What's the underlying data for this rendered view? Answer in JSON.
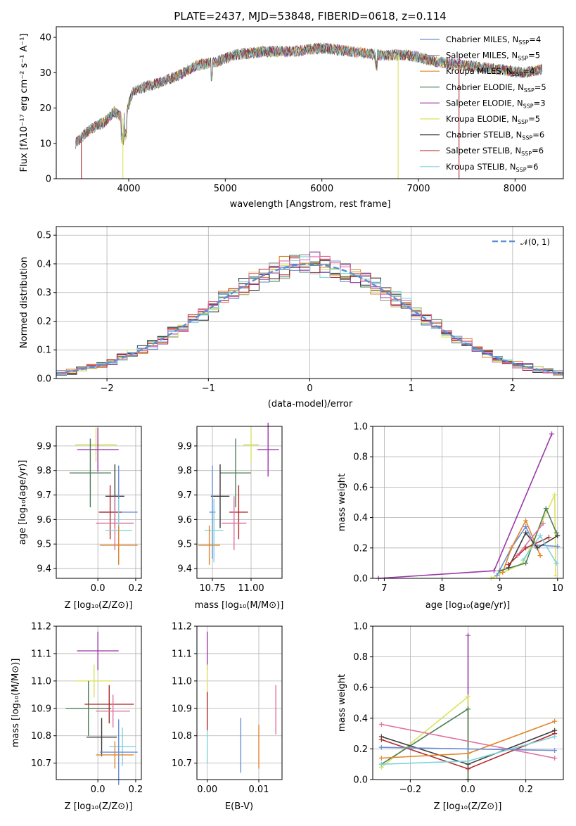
{
  "chart_data": [
    {
      "id": "spectrum",
      "type": "line",
      "title": "PLATE=2437, MJD=53848, FIBERID=0618, z=0.114",
      "xlabel": "wavelength [Angstrom, rest frame]",
      "ylabel": "Flux [fλ10⁻¹⁷ erg cm⁻² s⁻¹ A⁻¹]",
      "xlim": [
        3250,
        8500
      ],
      "ylim": [
        0,
        43
      ],
      "xticks": [
        4000,
        5000,
        6000,
        7000,
        8000
      ],
      "yticks": [
        0,
        10,
        20,
        30,
        40
      ],
      "legend_position": "top-right",
      "legend": [
        {
          "label": "Chabrier MILES, N",
          "sub": "SSP",
          "eq": "=4",
          "color": "#6a8fd6"
        },
        {
          "label": "Salpeter MILES, N",
          "sub": "SSP",
          "eq": "=5",
          "color": "#9a9a9a"
        },
        {
          "label": "Kroupa MILES, N",
          "sub": "SSP",
          "eq": "=4",
          "color": "#e2852b"
        },
        {
          "label": "Chabrier ELODIE, N",
          "sub": "SSP",
          "eq": "=5",
          "color": "#4f7f5b"
        },
        {
          "label": "Salpeter ELODIE, N",
          "sub": "SSP",
          "eq": "=3",
          "color": "#9b3aa8"
        },
        {
          "label": "Kroupa ELODIE, N",
          "sub": "SSP",
          "eq": "=5",
          "color": "#d9e35a"
        },
        {
          "label": "Chabrier STELIB, N",
          "sub": "SSP",
          "eq": "=6",
          "color": "#3c3c3c"
        },
        {
          "label": "Salpeter STELIB, N",
          "sub": "SSP",
          "eq": "=6",
          "color": "#b02a2a"
        },
        {
          "label": "Kroupa STELIB, N",
          "sub": "SSP",
          "eq": "=6",
          "color": "#7fd3db"
        }
      ],
      "continuum": [
        [
          3450,
          10
        ],
        [
          3600,
          14
        ],
        [
          3750,
          16
        ],
        [
          3850,
          19
        ],
        [
          3950,
          17
        ],
        [
          4050,
          25
        ],
        [
          4300,
          27
        ],
        [
          4500,
          29
        ],
        [
          4700,
          32
        ],
        [
          4900,
          33
        ],
        [
          5100,
          35
        ],
        [
          5400,
          36
        ],
        [
          5700,
          36
        ],
        [
          6000,
          37
        ],
        [
          6300,
          36
        ],
        [
          6600,
          35
        ],
        [
          6900,
          35
        ],
        [
          7200,
          33
        ],
        [
          7500,
          32
        ],
        [
          7800,
          31
        ],
        [
          8100,
          30
        ],
        [
          8280,
          31
        ]
      ],
      "drops": [
        {
          "x": 3510,
          "color": "#b02a2a"
        },
        {
          "x": 3940,
          "color": "#d9e35a"
        },
        {
          "x": 6790,
          "color": "#d9e35a"
        },
        {
          "x": 7420,
          "color": "#b02a2a"
        }
      ]
    },
    {
      "id": "residuals",
      "type": "line",
      "xlabel": "(data-model)/error",
      "ylabel": "Normed distribution",
      "xlim": [
        -2.5,
        2.5
      ],
      "ylim": [
        0,
        0.53
      ],
      "xticks": [
        -2,
        -1,
        0,
        1,
        2
      ],
      "xtick_labels": [
        "−2",
        "−1",
        "0",
        "1",
        "2"
      ],
      "yticks": [
        0.0,
        0.1,
        0.2,
        0.3,
        0.4,
        0.5
      ],
      "grid": true,
      "legend_position": "top-right",
      "legend": [
        {
          "label": "𝒩(0, 1)",
          "color": "#5a8fd6"
        }
      ],
      "bin_width": 0.1
    },
    {
      "id": "age-vs-Z",
      "type": "scatter",
      "xlabel": "Z [log₁₀(Z/Z⊙)]",
      "ylabel": "age  [log₁₀(age/yr)]",
      "xlim": [
        -0.22,
        0.23
      ],
      "ylim": [
        9.36,
        9.98
      ],
      "xticks": [
        0.0,
        0.2
      ],
      "xtick_labels": [
        "0.0",
        "0.2"
      ],
      "yticks": [
        9.4,
        9.5,
        9.6,
        9.7,
        9.8,
        9.9
      ],
      "points": [
        {
          "x": -0.01,
          "y": 9.905,
          "xerr": 0.11,
          "yerr": 0.07,
          "color": "#d9e35a"
        },
        {
          "x": 0.0,
          "y": 9.885,
          "xerr": 0.11,
          "yerr": 0.09,
          "color": "#9b3aa8"
        },
        {
          "x": -0.04,
          "y": 9.79,
          "xerr": 0.11,
          "yerr": 0.14,
          "color": "#4f7f5b"
        },
        {
          "x": 0.09,
          "y": 9.695,
          "xerr": 0.05,
          "yerr": 0.13,
          "color": "#3c3c3c"
        },
        {
          "x": 0.11,
          "y": 9.63,
          "xerr": 0.1,
          "yerr": 0.19,
          "color": "#6a8fd6"
        },
        {
          "x": 0.065,
          "y": 9.63,
          "xerr": 0.06,
          "yerr": 0.11,
          "color": "#b02a2a"
        },
        {
          "x": 0.09,
          "y": 9.585,
          "xerr": 0.1,
          "yerr": 0.11,
          "color": "#e0709f"
        },
        {
          "x": 0.11,
          "y": 9.555,
          "xerr": 0.07,
          "yerr": 0.13,
          "color": "#7fd3db"
        },
        {
          "x": 0.11,
          "y": 9.495,
          "xerr": 0.1,
          "yerr": 0.08,
          "color": "#e2852b"
        }
      ]
    },
    {
      "id": "age-vs-mass",
      "type": "scatter",
      "xlabel": "mass [log₁₀(M/M⊙)]",
      "ylabel": "",
      "xlim": [
        10.65,
        11.2
      ],
      "ylim": [
        9.36,
        9.98
      ],
      "xticks": [
        10.75,
        11.0
      ],
      "xtick_labels": [
        "10.75",
        "11.00"
      ],
      "yticks": [
        9.4,
        9.5,
        9.6,
        9.7,
        9.8,
        9.9
      ],
      "points": [
        {
          "x": 11.0,
          "y": 9.905,
          "xerr": 0.05,
          "yerr": 0.07,
          "color": "#d9e35a"
        },
        {
          "x": 11.11,
          "y": 9.885,
          "xerr": 0.07,
          "yerr": 0.11,
          "color": "#9b3aa8"
        },
        {
          "x": 10.9,
          "y": 9.79,
          "xerr": 0.1,
          "yerr": 0.14,
          "color": "#4f7f5b"
        },
        {
          "x": 10.8,
          "y": 9.695,
          "xerr": 0.06,
          "yerr": 0.13,
          "color": "#3c3c3c"
        },
        {
          "x": 10.75,
          "y": 9.63,
          "xerr": 0.02,
          "yerr": 0.19,
          "color": "#6a8fd6"
        },
        {
          "x": 10.92,
          "y": 9.63,
          "xerr": 0.06,
          "yerr": 0.11,
          "color": "#b02a2a"
        },
        {
          "x": 10.89,
          "y": 9.585,
          "xerr": 0.08,
          "yerr": 0.11,
          "color": "#e0709f"
        },
        {
          "x": 10.76,
          "y": 9.555,
          "xerr": 0.06,
          "yerr": 0.13,
          "color": "#7fd3db"
        },
        {
          "x": 10.73,
          "y": 9.495,
          "xerr": 0.07,
          "yerr": 0.08,
          "color": "#e2852b"
        }
      ]
    },
    {
      "id": "mass-weight-vs-age",
      "type": "line",
      "xlabel": "age  [log₁₀(age/yr)]",
      "ylabel": "mass weight",
      "xlim": [
        6.8,
        10.1
      ],
      "ylim": [
        0,
        1.0
      ],
      "xticks": [
        7,
        8,
        9,
        10
      ],
      "yticks": [
        0.0,
        0.2,
        0.4,
        0.6,
        0.8,
        1.0
      ],
      "grid": true,
      "series": [
        {
          "color": "#9b3aa8",
          "points": [
            [
              6.9,
              0.0
            ],
            [
              8.9,
              0.05
            ],
            [
              9.9,
              0.95
            ]
          ]
        },
        {
          "color": "#d9e35a",
          "points": [
            [
              8.85,
              0.0
            ],
            [
              9.4,
              0.1
            ],
            [
              9.95,
              0.55
            ],
            [
              9.97,
              0.02
            ]
          ]
        },
        {
          "color": "#6a8fd6",
          "points": [
            [
              8.95,
              0.02
            ],
            [
              9.2,
              0.2
            ],
            [
              9.45,
              0.34
            ],
            [
              9.6,
              0.22
            ],
            [
              10.0,
              0.21
            ]
          ]
        },
        {
          "color": "#e2852b",
          "points": [
            [
              9.05,
              0.04
            ],
            [
              9.2,
              0.2
            ],
            [
              9.45,
              0.38
            ],
            [
              9.7,
              0.15
            ]
          ]
        },
        {
          "color": "#4f7f5b",
          "points": [
            [
              9.0,
              0.05
            ],
            [
              9.45,
              0.1
            ],
            [
              9.8,
              0.46
            ],
            [
              9.98,
              0.3
            ]
          ]
        },
        {
          "color": "#3c3c3c",
          "points": [
            [
              9.15,
              0.07
            ],
            [
              9.45,
              0.3
            ],
            [
              9.65,
              0.2
            ],
            [
              10.0,
              0.28
            ]
          ]
        },
        {
          "color": "#b02a2a",
          "points": [
            [
              9.15,
              0.09
            ],
            [
              9.45,
              0.2
            ],
            [
              9.85,
              0.27
            ]
          ]
        },
        {
          "color": "#7fd3db",
          "points": [
            [
              9.4,
              0.12
            ],
            [
              9.7,
              0.28
            ],
            [
              9.98,
              0.1
            ]
          ]
        },
        {
          "color": "#e0709f",
          "points": [
            [
              9.3,
              0.15
            ],
            [
              9.75,
              0.36
            ]
          ]
        }
      ]
    },
    {
      "id": "mass-vs-Z",
      "type": "scatter",
      "xlabel": "Z [log₁₀(Z/Z⊙)]",
      "ylabel": "mass [log₁₀(M/M⊙)]",
      "xlim": [
        -0.22,
        0.23
      ],
      "ylim": [
        10.64,
        11.2
      ],
      "xticks": [
        0.0,
        0.2
      ],
      "xtick_labels": [
        "0.0",
        "0.2"
      ],
      "yticks": [
        10.7,
        10.8,
        10.9,
        11.0,
        11.1,
        11.2
      ],
      "points": [
        {
          "x": 0.0,
          "y": 11.11,
          "xerr": 0.11,
          "yerr": 0.07,
          "color": "#9b3aa8"
        },
        {
          "x": -0.02,
          "y": 11.0,
          "xerr": 0.1,
          "yerr": 0.06,
          "color": "#d9e35a"
        },
        {
          "x": -0.05,
          "y": 10.9,
          "xerr": 0.12,
          "yerr": 0.1,
          "color": "#4f7f5b"
        },
        {
          "x": 0.06,
          "y": 10.915,
          "xerr": 0.13,
          "yerr": 0.07,
          "color": "#b02a2a"
        },
        {
          "x": 0.08,
          "y": 10.89,
          "xerr": 0.09,
          "yerr": 0.06,
          "color": "#e0709f"
        },
        {
          "x": 0.02,
          "y": 10.795,
          "xerr": 0.08,
          "yerr": 0.07,
          "color": "#3c3c3c"
        },
        {
          "x": 0.13,
          "y": 10.76,
          "xerr": 0.07,
          "yerr": 0.07,
          "color": "#7fd3db"
        },
        {
          "x": 0.11,
          "y": 10.74,
          "xerr": 0.1,
          "yerr": 0.12,
          "color": "#6a8fd6"
        },
        {
          "x": 0.09,
          "y": 10.73,
          "xerr": 0.1,
          "yerr": 0.05,
          "color": "#e2852b"
        }
      ]
    },
    {
      "id": "mass-vs-ebv",
      "type": "scatter",
      "xlabel": "E(B-V)",
      "ylabel": "",
      "xlim": [
        -0.002,
        0.0145
      ],
      "ylim": [
        10.64,
        11.2
      ],
      "xticks": [
        0.0,
        0.01
      ],
      "xtick_labels": [
        "0.00",
        "0.01"
      ],
      "yticks": [
        10.7,
        10.8,
        10.9,
        11.0,
        11.1,
        11.2
      ],
      "points": [
        {
          "x": 0.0,
          "y": 11.11,
          "yerr": 0.07,
          "color": "#9b3aa8"
        },
        {
          "x": 0.0,
          "y": 11.0,
          "yerr": 0.06,
          "color": "#d9e35a"
        },
        {
          "x": 0.0,
          "y": 10.89,
          "yerr": 0.07,
          "color": "#b02a2a"
        },
        {
          "x": 0.0,
          "y": 10.76,
          "yerr": 0.06,
          "color": "#7fd3db"
        },
        {
          "x": 0.0065,
          "y": 10.765,
          "yerr": 0.1,
          "color": "#6a8fd6"
        },
        {
          "x": 0.01,
          "y": 10.76,
          "yerr": 0.08,
          "color": "#e2852b"
        },
        {
          "x": 0.0133,
          "y": 10.895,
          "yerr": 0.09,
          "color": "#e0709f"
        }
      ]
    },
    {
      "id": "mass-weight-vs-Z",
      "type": "line",
      "xlabel": "Z [log₁₀(Z/Z⊙)]",
      "ylabel": "mass weight",
      "xlim": [
        -0.33,
        0.33
      ],
      "ylim": [
        0,
        1.0
      ],
      "xticks": [
        -0.2,
        0.0,
        0.2
      ],
      "xtick_labels": [
        "−0.2",
        "0.0",
        "0.2"
      ],
      "yticks": [
        0.0,
        0.2,
        0.4,
        0.6,
        0.8,
        1.0
      ],
      "grid": true,
      "series": [
        {
          "color": "#9b3aa8",
          "points": [
            [
              0.0,
              0.94
            ],
            [
              0.0,
              0.0
            ]
          ]
        },
        {
          "color": "#d9e35a",
          "points": [
            [
              -0.3,
              0.08
            ],
            [
              0.0,
              0.54
            ],
            [
              0.0,
              0.0
            ]
          ]
        },
        {
          "color": "#4f7f5b",
          "points": [
            [
              -0.3,
              0.1
            ],
            [
              0.0,
              0.46
            ],
            [
              0.0,
              0.0
            ]
          ]
        },
        {
          "color": "#e0709f",
          "points": [
            [
              -0.3,
              0.36
            ],
            [
              0.3,
              0.14
            ]
          ]
        },
        {
          "color": "#3c3c3c",
          "points": [
            [
              -0.3,
              0.28
            ],
            [
              0.0,
              0.1
            ],
            [
              0.3,
              0.32
            ]
          ]
        },
        {
          "color": "#b02a2a",
          "points": [
            [
              -0.3,
              0.26
            ],
            [
              0.0,
              0.07
            ],
            [
              0.3,
              0.3
            ]
          ]
        },
        {
          "color": "#e2852b",
          "points": [
            [
              -0.3,
              0.14
            ],
            [
              0.0,
              0.17
            ],
            [
              0.3,
              0.38
            ]
          ]
        },
        {
          "color": "#6a8fd6",
          "points": [
            [
              -0.3,
              0.21
            ],
            [
              0.0,
              0.2
            ],
            [
              0.3,
              0.19
            ]
          ]
        },
        {
          "color": "#7fd3db",
          "points": [
            [
              -0.3,
              0.1
            ],
            [
              0.0,
              0.12
            ],
            [
              0.3,
              0.28
            ]
          ]
        }
      ]
    }
  ]
}
